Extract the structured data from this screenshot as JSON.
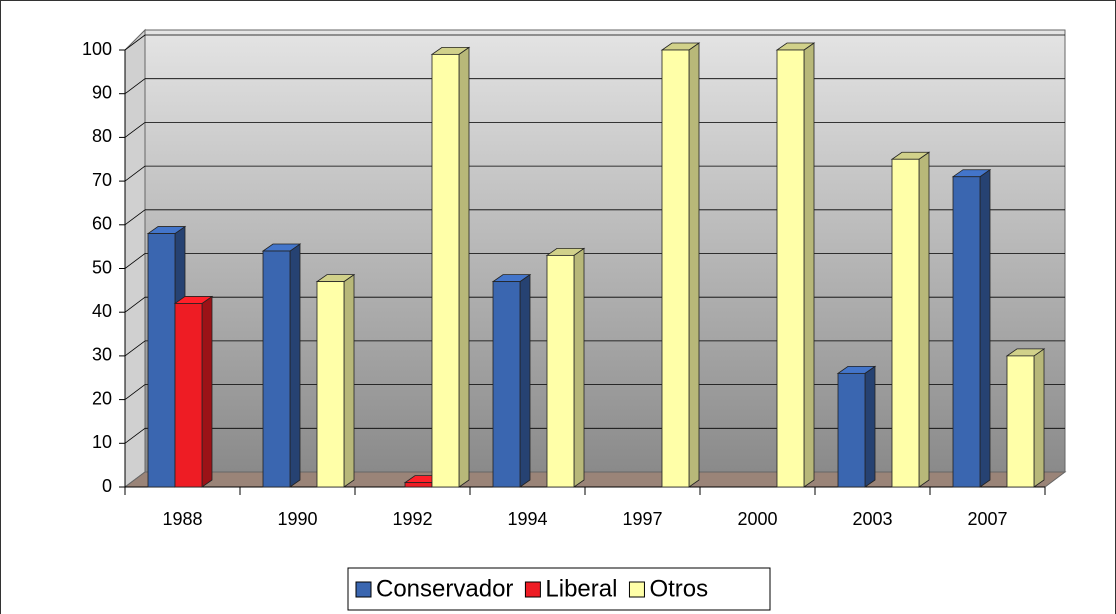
{
  "chart_data": {
    "type": "bar3d",
    "categories": [
      "1988",
      "1990",
      "1992",
      "1994",
      "1997",
      "2000",
      "2003",
      "2007"
    ],
    "series": [
      {
        "name": "Conservador",
        "color": "#3a66b0",
        "values": [
          58,
          54,
          0,
          47,
          null,
          null,
          26,
          71
        ]
      },
      {
        "name": "Liberal",
        "color": "#ee1c24",
        "values": [
          42,
          null,
          1,
          null,
          null,
          null,
          null,
          null
        ]
      },
      {
        "name": "Otros",
        "color": "#ffffa8",
        "values": [
          null,
          47,
          99,
          53,
          100,
          100,
          75,
          30
        ]
      }
    ],
    "ylim": [
      0,
      100
    ],
    "yticks": [
      0,
      10,
      20,
      30,
      40,
      50,
      60,
      70,
      80,
      90,
      100
    ],
    "grid": true,
    "legend": "bottom"
  }
}
